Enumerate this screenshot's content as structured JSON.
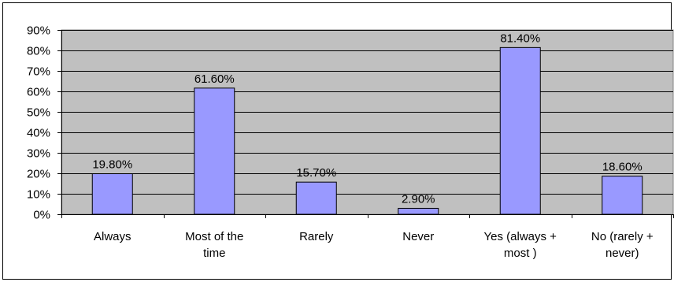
{
  "chart_data": {
    "type": "bar",
    "categories": [
      [
        "Always"
      ],
      [
        "Most of the",
        "time"
      ],
      [
        "Rarely"
      ],
      [
        "Never"
      ],
      [
        "Yes (always +",
        "most )"
      ],
      [
        "No (rarely +",
        "never)"
      ]
    ],
    "values": [
      19.8,
      61.6,
      15.7,
      2.9,
      81.4,
      18.6
    ],
    "data_labels": [
      "19.80%",
      "61.60%",
      "15.70%",
      "2.90%",
      "81.40%",
      "18.60%"
    ],
    "ylim": [
      0,
      90
    ],
    "ytick_values": [
      0,
      10,
      20,
      30,
      40,
      50,
      60,
      70,
      80,
      90
    ],
    "ytick_labels": [
      "0%",
      "10%",
      "20%",
      "30%",
      "40%",
      "50%",
      "60%",
      "70%",
      "80%",
      "90%"
    ],
    "title": "",
    "xlabel": "",
    "ylabel": "",
    "grid": true,
    "legend": "none",
    "colors": {
      "bar_fill": "#9999ff",
      "bar_stroke": "#000000",
      "plot_background": "#c0c0c0",
      "gridline": "#000000"
    }
  }
}
